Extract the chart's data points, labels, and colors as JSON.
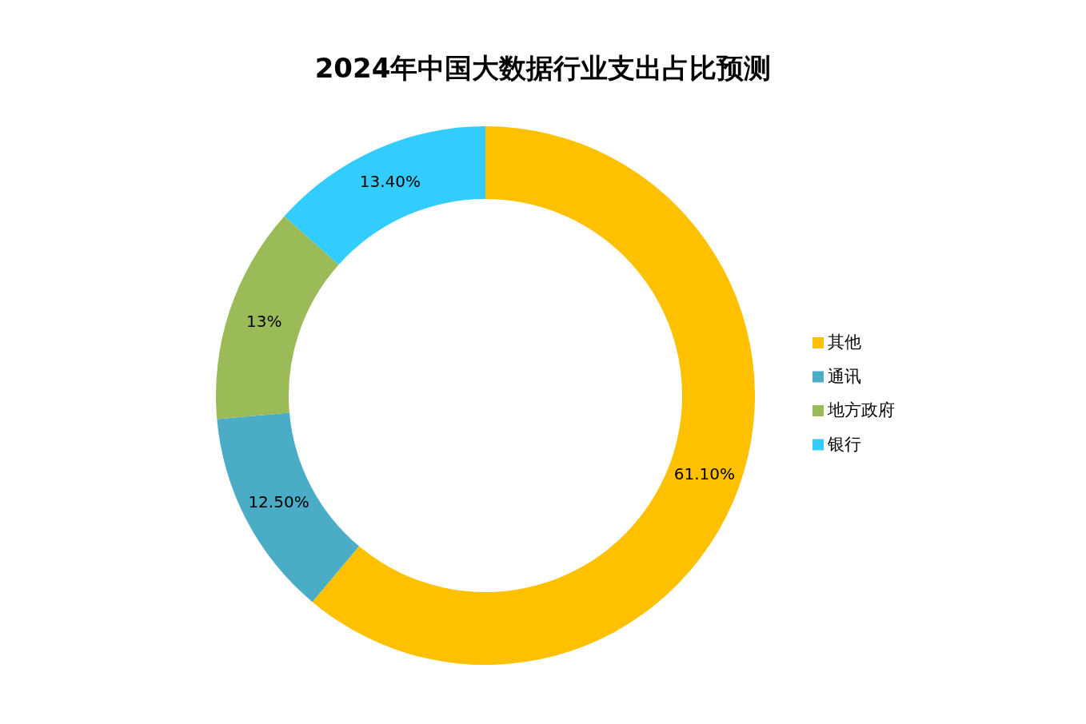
{
  "chart_data": {
    "type": "donut",
    "title": "2024年中国大数据行业支出占比预测",
    "categories": [
      "其他",
      "通讯",
      "地方政府",
      "银行"
    ],
    "values": [
      61.1,
      12.5,
      13,
      13.4
    ],
    "value_labels": [
      "61.10%",
      "12.50%",
      "13%",
      "13.40%"
    ],
    "colors": [
      "#ffc000",
      "#4bacc6",
      "#9bbb59",
      "#33ccff"
    ],
    "legend": "right"
  }
}
